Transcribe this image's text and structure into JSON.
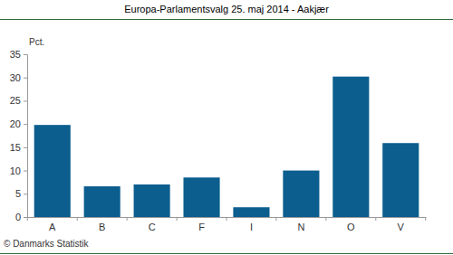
{
  "chart_data": {
    "type": "bar",
    "title": "Europa-Parlamentsvalg 25. maj 2014 - Aakjær",
    "y_label": "Pct.",
    "source": "© Danmarks Statistik",
    "categories": [
      "A",
      "B",
      "C",
      "F",
      "I",
      "N",
      "O",
      "V"
    ],
    "values": [
      19.8,
      6.6,
      7.0,
      8.5,
      2.1,
      10.0,
      30.2,
      15.9
    ],
    "color": "#0b5e8e",
    "ylim": [
      0,
      35
    ],
    "yticks": [
      0,
      5,
      10,
      15,
      20,
      25,
      30,
      35
    ],
    "grid": false
  }
}
